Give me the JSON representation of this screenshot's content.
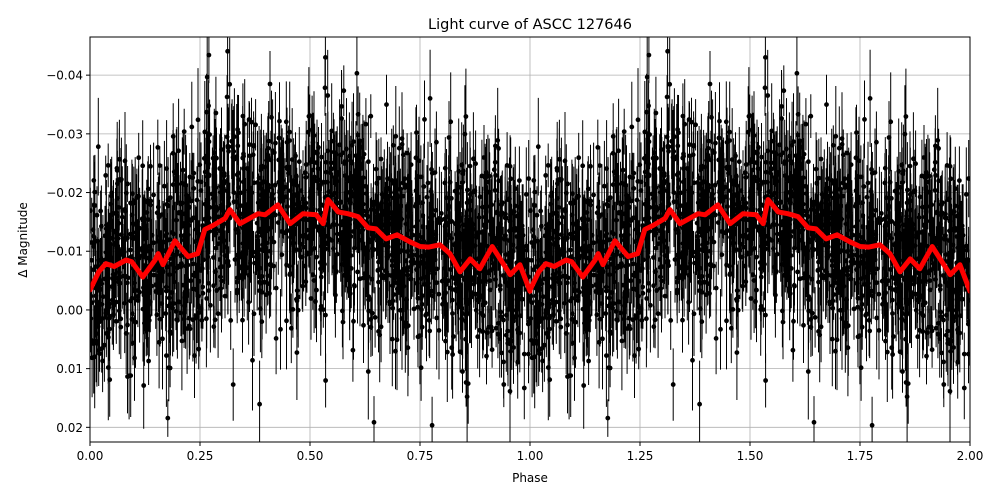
{
  "chart_data": {
    "type": "scatter",
    "title": "Light curve of ASCC 127646",
    "xlabel": "Phase",
    "ylabel": "Δ Magnitude",
    "xlim": [
      0.0,
      2.0
    ],
    "ylim": [
      0.0225,
      -0.0465
    ],
    "y_inverted": true,
    "grid": true,
    "legend": null,
    "x_ticks": [
      0.0,
      0.25,
      0.5,
      0.75,
      1.0,
      1.25,
      1.5,
      1.75,
      2.0
    ],
    "x_tick_labels": [
      "0.00",
      "0.25",
      "0.50",
      "0.75",
      "1.00",
      "1.25",
      "1.50",
      "1.75",
      "2.00"
    ],
    "y_ticks": [
      -0.04,
      -0.03,
      -0.02,
      -0.01,
      0.0,
      0.01,
      0.02
    ],
    "y_tick_labels": [
      "−0.04",
      "−0.03",
      "−0.02",
      "−0.01",
      "0.00",
      "0.01",
      "0.02"
    ],
    "series": [
      {
        "name": "observations",
        "kind": "errorbar-scatter",
        "color": "#000000",
        "description": "Dense phase-folded photometry with vertical error bars, repeated over two cycles; points scatter roughly between -0.045 and +0.022 mag around the binned curve",
        "approx_count_per_cycle": 1800,
        "typical_scatter": 0.009,
        "typical_errorbar": 0.006
      },
      {
        "name": "binned curve",
        "kind": "line",
        "color": "#ff0000",
        "linewidth": 4,
        "phase_one_cycle": [
          0.0,
          0.02,
          0.036,
          0.055,
          0.082,
          0.095,
          0.12,
          0.148,
          0.155,
          0.166,
          0.193,
          0.223,
          0.245,
          0.261,
          0.28,
          0.307,
          0.318,
          0.341,
          0.382,
          0.398,
          0.427,
          0.455,
          0.484,
          0.514,
          0.53,
          0.541,
          0.564,
          0.586,
          0.609,
          0.632,
          0.65,
          0.673,
          0.698,
          0.727,
          0.75,
          0.77,
          0.795,
          0.818,
          0.841,
          0.864,
          0.886,
          0.914,
          0.955,
          0.977,
          1.0
        ],
        "magnitude_one_cycle": [
          -0.0034,
          -0.0065,
          -0.0079,
          -0.0074,
          -0.0085,
          -0.0082,
          -0.0056,
          -0.0085,
          -0.0096,
          -0.0077,
          -0.0118,
          -0.0091,
          -0.0096,
          -0.0137,
          -0.0144,
          -0.0156,
          -0.0171,
          -0.0147,
          -0.0164,
          -0.0162,
          -0.0179,
          -0.0147,
          -0.0164,
          -0.0162,
          -0.0147,
          -0.0188,
          -0.0167,
          -0.0164,
          -0.0159,
          -0.014,
          -0.0138,
          -0.0121,
          -0.0128,
          -0.0116,
          -0.0108,
          -0.0107,
          -0.0111,
          -0.0096,
          -0.0065,
          -0.0087,
          -0.007,
          -0.0108,
          -0.006,
          -0.0077,
          -0.0032
        ],
        "repeats": 2
      }
    ]
  }
}
